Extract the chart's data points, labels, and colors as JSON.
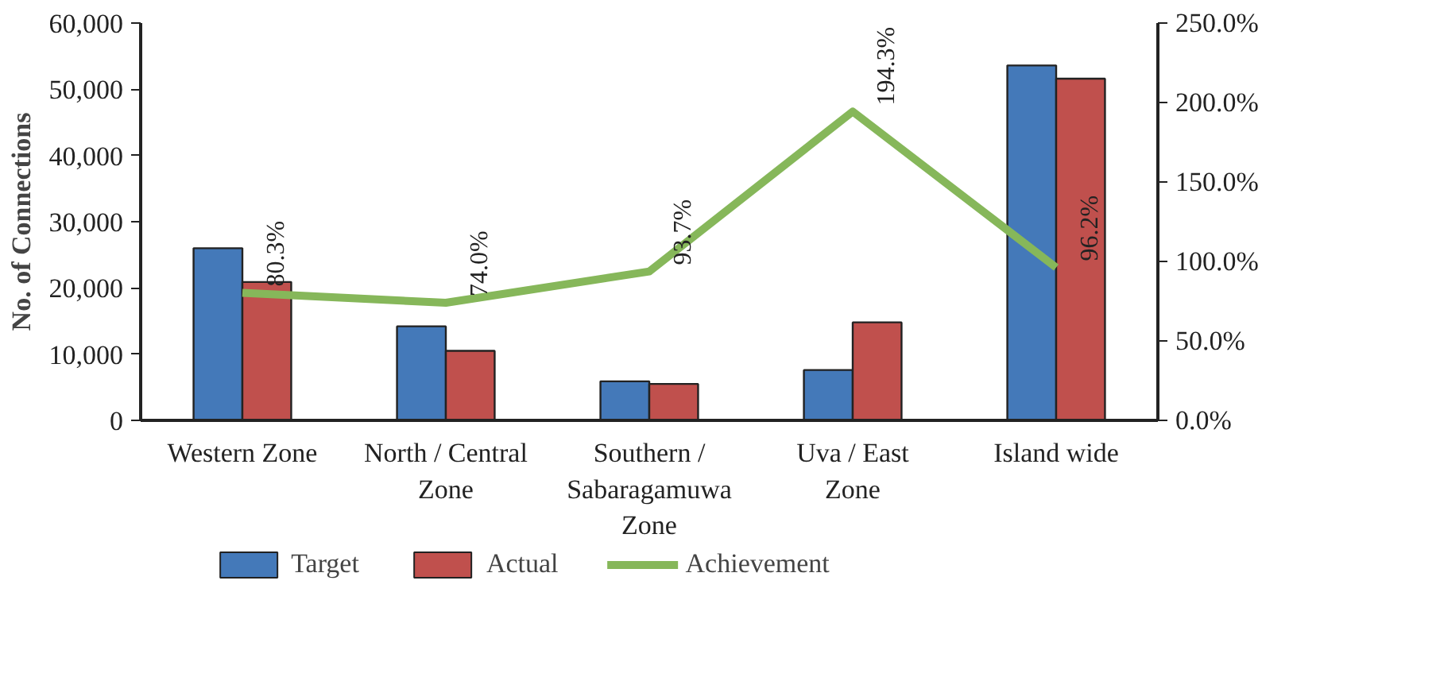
{
  "chart_data": {
    "type": "bar",
    "ylabel": "No. of Connections",
    "categories": [
      "Western Zone",
      "North / Central\nZone",
      "Southern /\nSabaragamuwa\nZone",
      "Uva / East\nZone",
      "Island wide"
    ],
    "series": [
      {
        "name": "Target",
        "color": "#4479b9",
        "values": [
          26000,
          14200,
          5900,
          7600,
          53600
        ]
      },
      {
        "name": "Actual",
        "color": "#c0504d",
        "values": [
          20900,
          10500,
          5500,
          14800,
          51600
        ]
      },
      {
        "name": "Achievement",
        "type": "line",
        "axis": "y2",
        "color": "#86b75a",
        "values": [
          80.3,
          74.0,
          93.7,
          194.3,
          96.2
        ],
        "value_labels": [
          "80.3%",
          "74.0%",
          "93.7%",
          "194.3%",
          "96.2%"
        ]
      }
    ],
    "ylim": [
      0,
      60000
    ],
    "yticks": [
      {
        "value": 0,
        "label": "0"
      },
      {
        "value": 10000,
        "label": "10,000"
      },
      {
        "value": 20000,
        "label": "20,000"
      },
      {
        "value": 30000,
        "label": "30,000"
      },
      {
        "value": 40000,
        "label": "40,000"
      },
      {
        "value": 50000,
        "label": "50,000"
      },
      {
        "value": 60000,
        "label": "60,000"
      }
    ],
    "y2lim": [
      0,
      250
    ],
    "y2ticks": [
      {
        "value": 0,
        "label": "0.0%"
      },
      {
        "value": 50,
        "label": "50.0%"
      },
      {
        "value": 100,
        "label": "100.0%"
      },
      {
        "value": 150,
        "label": "150.0%"
      },
      {
        "value": 200,
        "label": "200.0%"
      },
      {
        "value": 250,
        "label": "250.0%"
      }
    ],
    "legend": "bottom",
    "grid": false
  }
}
